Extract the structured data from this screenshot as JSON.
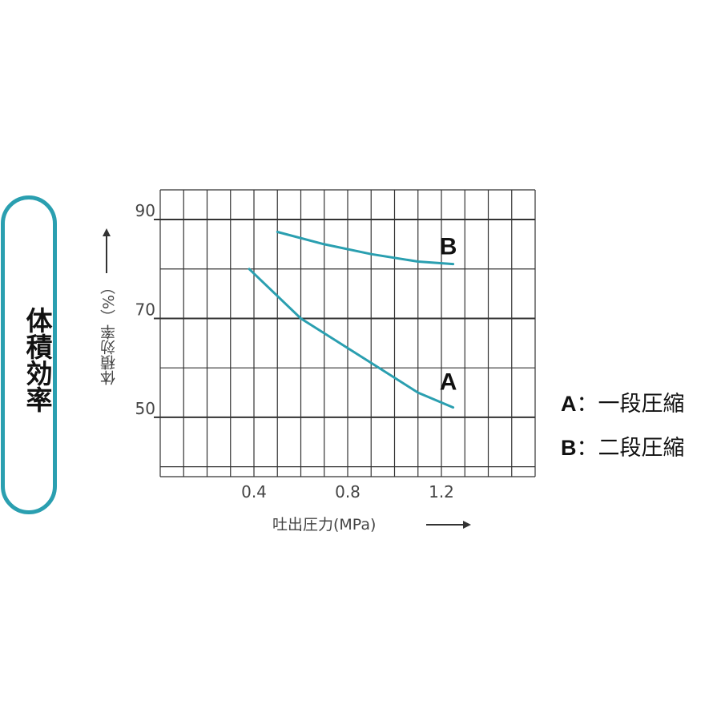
{
  "side_label": "体積効率",
  "legend": [
    {
      "key": "A",
      "sep": "：",
      "text": "一段圧縮"
    },
    {
      "key": "B",
      "sep": "：",
      "text": "二段圧縮"
    }
  ],
  "colors": {
    "curve": "#2a9fb0",
    "pill_border": "#2a9fb0",
    "grid": "#333333"
  },
  "chart_data": {
    "type": "line",
    "xlabel": "吐出圧力(MPa)",
    "ylabel": "体積効率（%）",
    "xlim": [
      0,
      1.6
    ],
    "ylim": [
      38,
      96
    ],
    "x_ticks": [
      0.4,
      0.8,
      1.2
    ],
    "x_tick_labels": [
      "0.4",
      "0.8",
      "1.2"
    ],
    "y_ticks": [
      50,
      70,
      90
    ],
    "y_tick_labels": [
      "50",
      "70",
      "90"
    ],
    "grid": true,
    "series": [
      {
        "name": "A",
        "x": [
          0.38,
          0.6,
          0.9,
          1.1,
          1.25
        ],
        "y": [
          80,
          70,
          61,
          55,
          52
        ]
      },
      {
        "name": "B",
        "x": [
          0.5,
          0.7,
          0.9,
          1.1,
          1.25
        ],
        "y": [
          87.5,
          85,
          83,
          81.5,
          81
        ]
      }
    ]
  }
}
